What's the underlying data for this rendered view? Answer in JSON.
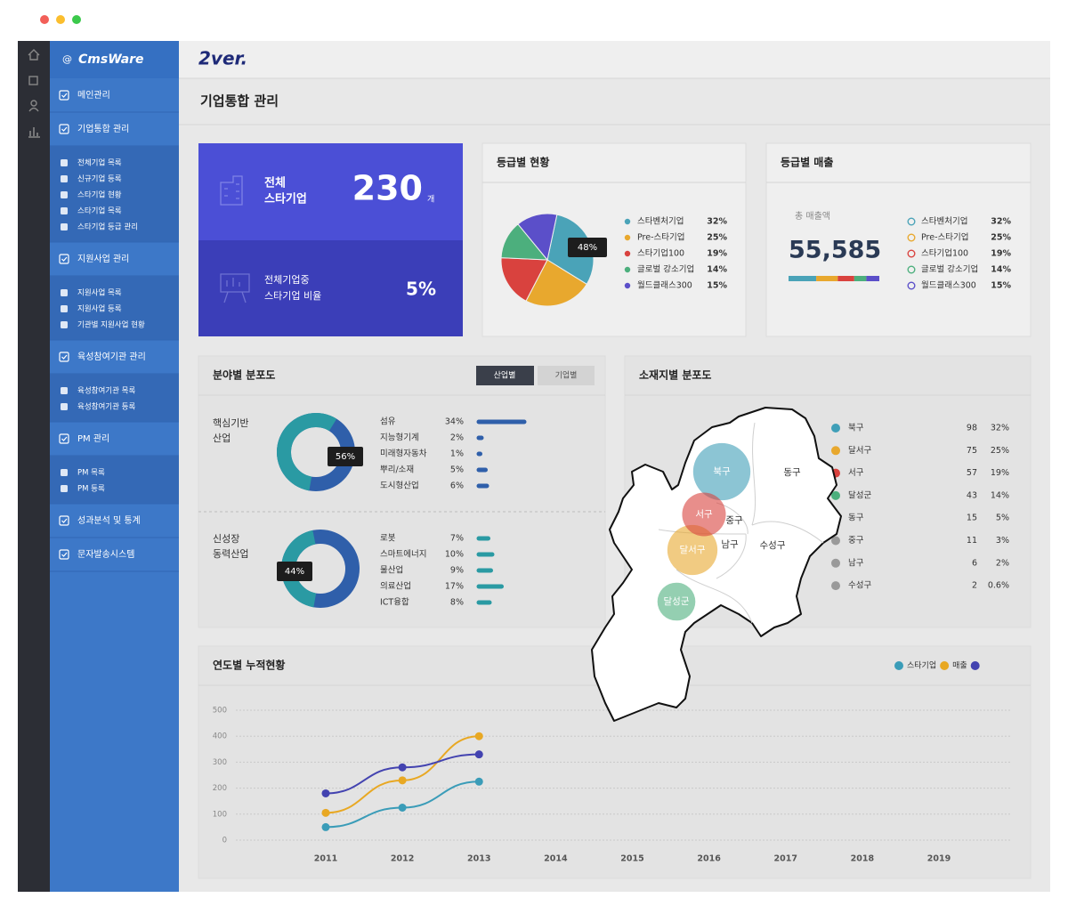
{
  "sidebar": {
    "brand": "CmsWare",
    "menu": [
      {
        "label": "메인관리"
      },
      {
        "label": "기업통합 관리",
        "children": [
          "전체기업 목록",
          "신규기업 등록",
          "스타기업 현황",
          "스타기업 목록",
          "스타기업 등급 관리"
        ]
      },
      {
        "label": "지원사업 관리",
        "children": [
          "지원사업 목록",
          "지원사업 등록",
          "기관별 지원사업 현황"
        ]
      },
      {
        "label": "육성참여기관 관리",
        "children": [
          "육성참여기관 목록",
          "육성참여기관 등록"
        ]
      },
      {
        "label": "PM 관리",
        "children": [
          "PM 목록",
          "PM 등록"
        ]
      },
      {
        "label": "성과분석 및 통계"
      },
      {
        "label": "문자발송시스템"
      }
    ]
  },
  "header": {
    "logo": "2ver.",
    "title": "기업통합 관리"
  },
  "summary": {
    "count_label": [
      "전체",
      "스타기업"
    ],
    "count": 230,
    "count_unit": "개",
    "ratio_label": [
      "전체기업중",
      "스타기업 비율"
    ],
    "ratio": "5%"
  },
  "grade_status": {
    "title": "등급별 현황",
    "type": "pie",
    "categories": [
      "스타벤처기업",
      "Pre-스타기업",
      "스타기업100",
      "글로벌 강소기업",
      "월드클래스300"
    ],
    "colors": [
      "#4aa3b8",
      "#e8a82e",
      "#d9423e",
      "#4caf7d",
      "#5b4fc9"
    ],
    "values": [
      32,
      25,
      19,
      14,
      15
    ],
    "value_labels": [
      "32%",
      "25%",
      "19%",
      "14%",
      "15%"
    ],
    "callout": "48%"
  },
  "grade_sales": {
    "title": "등급별 매출",
    "total_label": "총 매출액",
    "total": "55,585",
    "categories": [
      "스타벤처기업",
      "Pre-스타기업",
      "스타기업100",
      "글로벌 강소기업",
      "월드클래스300"
    ],
    "colors": [
      "#4aa3b8",
      "#e8a82e",
      "#d9423e",
      "#4caf7d",
      "#5b4fc9"
    ],
    "values": [
      32,
      25,
      19,
      14,
      15
    ],
    "value_labels": [
      "32%",
      "25%",
      "19%",
      "14%",
      "15%"
    ]
  },
  "field": {
    "title": "분야별 분포도",
    "tabs": [
      "산업별",
      "기업별"
    ],
    "groups": [
      {
        "name": [
          "핵심기반",
          "산업"
        ],
        "share": 56,
        "share_label": "56%",
        "color": "#2f5faa",
        "items": [
          "섬유",
          "지능형기계",
          "미래형자동차",
          "뿌리/소재",
          "도시형산업"
        ],
        "values": [
          34,
          2,
          1,
          5,
          6
        ],
        "value_labels": [
          "34%",
          "2%",
          "1%",
          "5%",
          "6%"
        ]
      },
      {
        "name": [
          "신성장",
          "동력산업"
        ],
        "share": 44,
        "share_label": "44%",
        "color": "#2a9aa3",
        "items": [
          "로봇",
          "스마트에너지",
          "물산업",
          "의료산업",
          "ICT융합"
        ],
        "values": [
          7,
          10,
          9,
          17,
          8
        ],
        "value_labels": [
          "7%",
          "10%",
          "9%",
          "17%",
          "8%"
        ]
      }
    ]
  },
  "region": {
    "title": "소재지별 분포도",
    "items": [
      "북구",
      "달서구",
      "서구",
      "달성군",
      "동구",
      "중구",
      "남구",
      "수성구"
    ],
    "counts": [
      98,
      75,
      57,
      43,
      15,
      11,
      6,
      2
    ],
    "pcts": [
      "32%",
      "25%",
      "19%",
      "14%",
      "5%",
      "3%",
      "2%",
      "0.6%"
    ],
    "colors": [
      "#3f9fb8",
      "#e8a82e",
      "#d9423e",
      "#4caf7d",
      "#9a9a9a",
      "#9a9a9a",
      "#9a9a9a",
      "#9a9a9a"
    ]
  },
  "chart_data": {
    "type": "line",
    "title": "연도별 누적현황",
    "categories": [
      "2011",
      "2012",
      "2013",
      "2014",
      "2015",
      "2016",
      "2017",
      "2018",
      "2019"
    ],
    "series": [
      {
        "name": "스타기업",
        "color": "#3a9cb8",
        "values": [
          50,
          125,
          225,
          null,
          null,
          null,
          null,
          null,
          null
        ]
      },
      {
        "name": "매출",
        "color": "#e8a823",
        "values": [
          105,
          230,
          400,
          null,
          null,
          null,
          null,
          null,
          null
        ]
      },
      {
        "color": "#4343b0",
        "values": [
          180,
          280,
          330,
          null,
          null,
          null,
          null,
          null,
          null
        ]
      }
    ],
    "ylim": [
      0,
      500
    ],
    "yticks": [
      0,
      100,
      200,
      300,
      400,
      500
    ],
    "grid": true
  }
}
